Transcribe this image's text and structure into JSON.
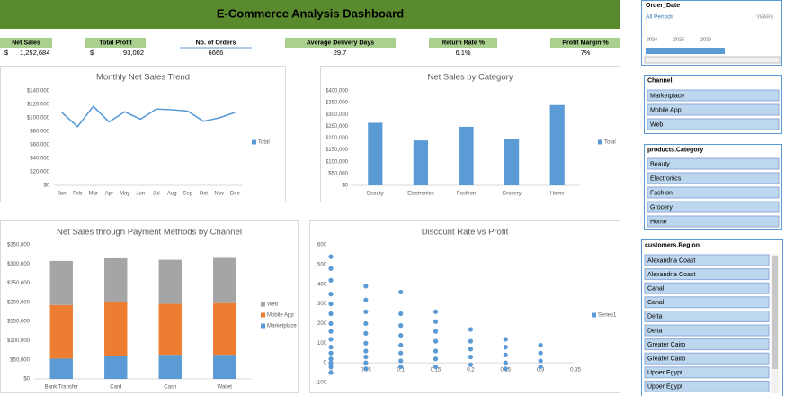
{
  "header": {
    "title": "E-Commerce Analysis Dashboard"
  },
  "kpis": [
    {
      "label": "Net Sales",
      "prefix": "$",
      "value": "1,252,684"
    },
    {
      "label": "Total Profit",
      "prefix": "$",
      "value": "93,002"
    },
    {
      "label": "No. of Orders",
      "value": "6666"
    },
    {
      "label": "Average Delivery Days",
      "value": "29.7"
    },
    {
      "label": "Return Rate %",
      "value": "6.1%"
    },
    {
      "label": "Profit Margin %",
      "value": "7%"
    }
  ],
  "date_slicer": {
    "title": "Order_Date",
    "period": "All Periods",
    "unit": "YEARS",
    "years": [
      "2024",
      "2025",
      "2026"
    ]
  },
  "slicers": [
    {
      "title": "Channel",
      "items": [
        "Marketplace",
        "Mobile App",
        "Web"
      ]
    },
    {
      "title": "products.Category",
      "items": [
        "Beauty",
        "Electronics",
        "Fashion",
        "Grocery",
        "Home"
      ]
    },
    {
      "title": "customers.Region",
      "items": [
        "Alexandria Coast",
        "Alexandria Coast",
        "Canal",
        "Canal",
        "Delta",
        "Delta",
        "Greater Cairo",
        "Greater Cairo",
        "Upper Egypt",
        "Upper Egypt"
      ]
    }
  ],
  "chart_data": [
    {
      "type": "line",
      "title": "Monthly  Net Sales Trend",
      "categories": [
        "Jan",
        "Feb",
        "Mar",
        "Apr",
        "May",
        "Jun",
        "Jul",
        "Aug",
        "Sep",
        "Oct",
        "Nov",
        "Dec"
      ],
      "series": [
        {
          "name": "Total",
          "color": "#5b9bd5",
          "values": [
            108000,
            87000,
            117000,
            94000,
            109000,
            98000,
            113000,
            112000,
            110000,
            95000,
            100000,
            108000
          ]
        }
      ],
      "ylim": [
        0,
        140000
      ],
      "yticks": [
        {
          "value": 0,
          "label": "$0"
        },
        {
          "value": 20000,
          "label": "$20,000"
        },
        {
          "value": 40000,
          "label": "$40,000"
        },
        {
          "value": 60000,
          "label": "$60,000"
        },
        {
          "value": 80000,
          "label": "$80,000"
        },
        {
          "value": 100000,
          "label": "$100,000"
        },
        {
          "value": 120000,
          "label": "$120,000"
        },
        {
          "value": 140000,
          "label": "$140,000"
        }
      ],
      "grid": false
    },
    {
      "type": "bar",
      "title": "Net Sales by Category",
      "categories": [
        "Beauty",
        "Electronics",
        "Fashion",
        "Grocery",
        "Home"
      ],
      "series": [
        {
          "name": "Total",
          "color": "#5b9bd5",
          "values": [
            265000,
            190000,
            248000,
            197000,
            340000
          ]
        }
      ],
      "ylim": [
        0,
        400000
      ],
      "yticks": [
        {
          "value": 0,
          "label": "$0"
        },
        {
          "value": 50000,
          "label": "$50,000"
        },
        {
          "value": 100000,
          "label": "$100,000"
        },
        {
          "value": 150000,
          "label": "$150,000"
        },
        {
          "value": 200000,
          "label": "$200,000"
        },
        {
          "value": 250000,
          "label": "$250,000"
        },
        {
          "value": 300000,
          "label": "$300,000"
        },
        {
          "value": 350000,
          "label": "$350,000"
        },
        {
          "value": 400000,
          "label": "$400,000"
        }
      ],
      "grid": false
    },
    {
      "type": "bar",
      "stacked": true,
      "title": "Net Sales through Payment Methods by Channel",
      "categories": [
        "Bank Transfer",
        "Card",
        "Cash",
        "Wallet"
      ],
      "series": [
        {
          "name": "Marketplace",
          "color": "#5b9bd5",
          "values": [
            53000,
            60000,
            63000,
            63000
          ]
        },
        {
          "name": "Mobile App",
          "color": "#ed7d31",
          "values": [
            140000,
            140000,
            133000,
            135000
          ]
        },
        {
          "name": "Web",
          "color": "#a5a5a5",
          "values": [
            115000,
            115000,
            115000,
            118000
          ]
        }
      ],
      "ylim": [
        0,
        350000
      ],
      "yticks": [
        {
          "value": 0,
          "label": "$0"
        },
        {
          "value": 50000,
          "label": "$50,000"
        },
        {
          "value": 100000,
          "label": "$100,000"
        },
        {
          "value": 150000,
          "label": "$150,000"
        },
        {
          "value": 200000,
          "label": "$200,000"
        },
        {
          "value": 250000,
          "label": "$250,000"
        },
        {
          "value": 300000,
          "label": "$300,000"
        },
        {
          "value": 350000,
          "label": "$350,000"
        }
      ],
      "grid": false
    },
    {
      "type": "scatter",
      "title": "Discount Rate vs Profit",
      "x": [
        0,
        0,
        0,
        0,
        0,
        0,
        0,
        0,
        0,
        0,
        0,
        0,
        0,
        0,
        0,
        0.05,
        0.05,
        0.05,
        0.05,
        0.05,
        0.05,
        0.05,
        0.05,
        0.05,
        0.05,
        0.1,
        0.1,
        0.1,
        0.1,
        0.1,
        0.1,
        0.1,
        0.1,
        0.15,
        0.15,
        0.15,
        0.15,
        0.15,
        0.15,
        0.15,
        0.2,
        0.2,
        0.2,
        0.2,
        0.2,
        0.25,
        0.25,
        0.25,
        0.25,
        0.25,
        0.3,
        0.3,
        0.3,
        0.3
      ],
      "series": [
        {
          "name": "Series1",
          "color": "#5b9bd5",
          "values": [
            -50,
            -20,
            0,
            20,
            50,
            80,
            120,
            160,
            200,
            250,
            300,
            350,
            420,
            480,
            540,
            -30,
            0,
            30,
            60,
            100,
            150,
            200,
            260,
            320,
            390,
            -20,
            10,
            50,
            90,
            140,
            190,
            250,
            360,
            -20,
            20,
            60,
            110,
            160,
            210,
            260,
            -10,
            30,
            70,
            110,
            170,
            -30,
            0,
            40,
            80,
            120,
            -20,
            10,
            50,
            90
          ]
        }
      ],
      "xlim": [
        0,
        0.35
      ],
      "xticks": [
        0,
        0.05,
        0.1,
        0.15,
        0.2,
        0.25,
        0.3,
        0.35
      ],
      "ylim": [
        -100,
        600
      ],
      "yticks": [
        -100,
        0,
        100,
        200,
        300,
        400,
        500,
        600
      ],
      "grid": false
    }
  ]
}
